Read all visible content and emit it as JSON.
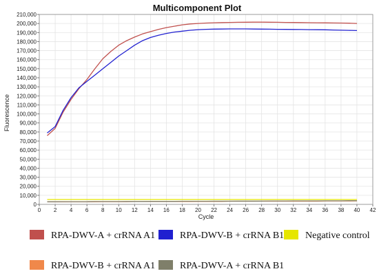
{
  "chart_data": {
    "type": "line",
    "title": "Multicomponent Plot",
    "xlabel": "Cycle",
    "ylabel": "Fluorescence",
    "xlim": [
      0,
      42
    ],
    "ylim": [
      0,
      210000
    ],
    "xticks": [
      0,
      2,
      4,
      6,
      8,
      10,
      12,
      14,
      16,
      18,
      20,
      22,
      24,
      26,
      28,
      30,
      32,
      34,
      36,
      38,
      40,
      42
    ],
    "yticks": [
      0,
      10000,
      20000,
      30000,
      40000,
      50000,
      60000,
      70000,
      80000,
      90000,
      100000,
      110000,
      120000,
      130000,
      140000,
      150000,
      160000,
      170000,
      180000,
      190000,
      200000,
      210000
    ],
    "ytick_labels": [
      "0",
      "10,000",
      "20,000",
      "30,000",
      "40,000",
      "50,000",
      "60,000",
      "70,000",
      "80,000",
      "90,000",
      "100,000",
      "110,000",
      "120,000",
      "130,000",
      "140,000",
      "150,000",
      "160,000",
      "170,000",
      "180,000",
      "190,000",
      "200,000",
      "210,000"
    ],
    "grid": true,
    "legend_position": "bottom",
    "x": [
      1,
      2,
      3,
      4,
      5,
      6,
      7,
      8,
      9,
      10,
      11,
      12,
      13,
      14,
      15,
      16,
      17,
      18,
      19,
      20,
      21,
      22,
      23,
      24,
      25,
      26,
      27,
      28,
      29,
      30,
      31,
      32,
      33,
      34,
      35,
      36,
      37,
      38,
      39,
      40
    ],
    "series": [
      {
        "name": "RPA-DWV-A + crRNA A1",
        "color": "#c0504d",
        "values": [
          76000,
          84000,
          102000,
          116000,
          128000,
          138000,
          150000,
          161000,
          169000,
          176000,
          181000,
          185000,
          188500,
          191000,
          193500,
          195500,
          197000,
          198500,
          199500,
          200000,
          200500,
          200800,
          201000,
          201200,
          201300,
          201400,
          201500,
          201500,
          201400,
          201300,
          201200,
          201100,
          201000,
          200900,
          200800,
          200700,
          200600,
          200500,
          200300,
          200000
        ]
      },
      {
        "name": "RPA-DWV-B + crRNA B1",
        "color": "#2020d0",
        "values": [
          79000,
          86000,
          104000,
          118000,
          129000,
          136000,
          143000,
          150000,
          157000,
          164000,
          170000,
          176000,
          181000,
          184500,
          187000,
          189000,
          190500,
          191500,
          192500,
          193200,
          193600,
          193800,
          193900,
          194000,
          194000,
          194000,
          193900,
          193800,
          193700,
          193600,
          193500,
          193400,
          193300,
          193200,
          193100,
          193000,
          192800,
          192600,
          192400,
          192200
        ]
      },
      {
        "name": "Negative control",
        "color": "#e6e600",
        "values": [
          5400,
          5400,
          5400,
          5400,
          5400,
          5400,
          5400,
          5400,
          5400,
          5400,
          5400,
          5400,
          5400,
          5400,
          5400,
          5400,
          5400,
          5400,
          5400,
          5400,
          5400,
          5400,
          5400,
          5400,
          5400,
          5400,
          5400,
          5400,
          5400,
          5400,
          5400,
          5400,
          5400,
          5400,
          5400,
          5400,
          5400,
          5400,
          5400,
          5400
        ]
      },
      {
        "name": "RPA-DWV-B + crRNA A1",
        "color": "#f0884a",
        "values": [
          2800,
          2800,
          2800,
          2900,
          2900,
          2900,
          2900,
          3000,
          3000,
          3000,
          3000,
          3100,
          3100,
          3100,
          3100,
          3200,
          3200,
          3200,
          3200,
          3300,
          3300,
          3300,
          3300,
          3400,
          3400,
          3400,
          3400,
          3500,
          3500,
          3500,
          3500,
          3600,
          3600,
          3600,
          3600,
          3700,
          3700,
          3700,
          3700,
          3800
        ]
      },
      {
        "name": "RPA-DWV-A + crRNA B1",
        "color": "#7f7f6a",
        "values": [
          2900,
          2900,
          3000,
          3000,
          3000,
          3000,
          3100,
          3100,
          3100,
          3100,
          3200,
          3200,
          3200,
          3300,
          3300,
          3300,
          3300,
          3400,
          3400,
          3400,
          3400,
          3500,
          3500,
          3500,
          3600,
          3600,
          3600,
          3600,
          3700,
          3700,
          3700,
          3800,
          3800,
          3800,
          3800,
          3900,
          3900,
          3900,
          4000,
          4000
        ]
      }
    ]
  }
}
